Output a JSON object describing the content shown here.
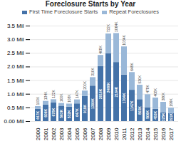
{
  "chart_data": {
    "type": "bar",
    "title": "Foreclosure Starts by Year",
    "stacked": true,
    "categories": [
      "2000",
      "2001",
      "2002",
      "2003",
      "2004",
      "2005",
      "2006",
      "2007",
      "2008",
      "2009",
      "2010",
      "2011",
      "2012",
      "2013",
      "2014",
      "2015",
      "2016",
      "2017"
    ],
    "series": [
      {
        "name": "First Time Foreclosure Starts",
        "color": "#4472a8",
        "values": [
          0.447,
          0.606,
          0.678,
          0.563,
          0.532,
          0.647,
          0.919,
          1.3,
          2.016,
          2.488,
          2.164,
          1.704,
          1.147,
          0.803,
          0.506,
          0.453,
          0.325,
          0.291
        ],
        "value_labels": [
          "447K",
          "606K",
          "678K",
          "563K",
          "532K",
          "647K",
          "919K",
          "1300K",
          "2016K",
          "2488K",
          "2164K",
          "1704K",
          "1147K",
          "803K",
          "506K",
          "453K",
          "325K",
          "291K"
        ]
      },
      {
        "name": "Repeat Foreclosures",
        "color": "#9ab8d8",
        "values": [
          0.103,
          0.134,
          0.122,
          0.1,
          0.108,
          0.147,
          0.2,
          0.31,
          0.408,
          0.722,
          1.064,
          1.034,
          0.649,
          0.53,
          0.478,
          0.408,
          0.38,
          0.199
        ],
        "value_labels": [
          "103K",
          "134K",
          "122K",
          "100K",
          "108K",
          "147K",
          "200K",
          "310K",
          "408K",
          "722K",
          "1064K",
          "1034K",
          "649K",
          "530K",
          "478K",
          "408K",
          "380K",
          "199K"
        ]
      }
    ],
    "ylim": [
      0,
      3.5
    ],
    "yticks": [
      {
        "value": 0.0,
        "label": "0.00 Mil"
      },
      {
        "value": 0.5,
        "label": "0.5 Mil"
      },
      {
        "value": 1.0,
        "label": "1.0 Mil"
      },
      {
        "value": 1.5,
        "label": "1.5 Mil"
      },
      {
        "value": 2.0,
        "label": "2.0 Mil"
      },
      {
        "value": 2.5,
        "label": "2.5 Mil"
      },
      {
        "value": 3.0,
        "label": "3.0 Mil"
      },
      {
        "value": 3.5,
        "label": "3.5 Mil"
      }
    ],
    "grid": true,
    "legend": "top",
    "data_labels": true
  }
}
